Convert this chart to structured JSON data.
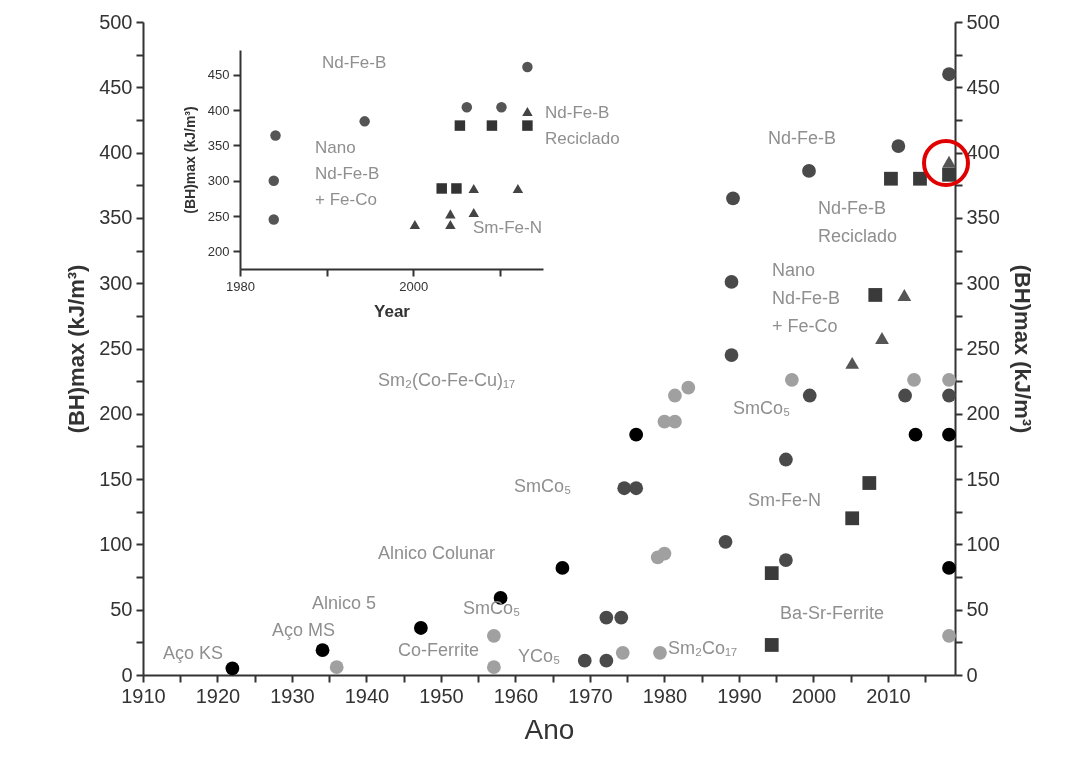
{
  "chart_data": [
    {
      "type": "scatter",
      "xlabel": "Ano",
      "ylabel": "(BH)max (kJ/m³)",
      "y2label": "(BH)max (kJ/m³)",
      "xlim": [
        1910,
        2019
      ],
      "ylim": [
        0,
        500
      ],
      "y2lim": [
        0,
        500
      ],
      "xticks": [
        1910,
        {
          "value": 1915,
          "label": null
        },
        1920,
        {
          "value": 1925,
          "label": null
        },
        1930,
        {
          "value": 1935,
          "label": null
        },
        1940,
        {
          "value": 1945,
          "label": null
        },
        1950,
        {
          "value": 1955,
          "label": null
        },
        1960,
        {
          "value": 1965,
          "label": null
        },
        1970,
        {
          "value": 1975,
          "label": null
        },
        1980,
        {
          "value": 1985,
          "label": null
        },
        1990,
        {
          "value": 1995,
          "label": null
        },
        2000,
        {
          "value": 2005,
          "label": null
        },
        2010,
        {
          "value": 2015,
          "label": null
        }
      ],
      "yticks": [
        0,
        {
          "value": 25,
          "label": null
        },
        50,
        {
          "value": 75,
          "label": null
        },
        100,
        {
          "value": 125,
          "label": null
        },
        150,
        {
          "value": 175,
          "label": null
        },
        200,
        {
          "value": 225,
          "label": null
        },
        250,
        {
          "value": 275,
          "label": null
        },
        300,
        {
          "value": 325,
          "label": null
        },
        350,
        {
          "value": 375,
          "label": null
        },
        400,
        {
          "value": 425,
          "label": null
        },
        450,
        {
          "value": 475,
          "label": null
        },
        500
      ],
      "y2ticks": [
        0,
        {
          "value": 25,
          "label": null
        },
        50,
        {
          "value": 75,
          "label": null
        },
        100,
        {
          "value": 125,
          "label": null
        },
        150,
        {
          "value": 175,
          "label": null
        },
        200,
        {
          "value": 225,
          "label": null
        },
        250,
        {
          "value": 275,
          "label": null
        },
        300,
        {
          "value": 325,
          "label": null
        },
        350,
        {
          "value": 375,
          "label": null
        },
        400,
        {
          "value": 425,
          "label": null
        },
        450,
        {
          "value": 475,
          "label": null
        },
        500
      ],
      "series": [
        {
          "color": "#000000",
          "marker": "circle",
          "x": [
            1922.0,
            1934.1,
            1947.3,
            1958.0,
            1966.3,
            1976.2,
            2013.7,
            2018.2,
            2018.2
          ],
          "values": [
            5,
            19,
            36,
            59,
            82,
            184,
            184,
            184,
            82
          ]
        },
        {
          "color": "#4a4a4a",
          "marker": "circle",
          "x": [
            1969.3,
            1972.2,
            1972.2,
            1974.2,
            1974.6,
            1976.2,
            1988.2,
            1989.0,
            1989.0,
            1989.2,
            1996.3,
            1996.3,
            1999.4,
            1999.5,
            2011.4,
            2012.3,
            2018.2,
            2018.2
          ],
          "values": [
            11,
            11,
            44,
            44,
            143,
            143,
            102,
            245,
            301,
            365,
            88,
            165,
            386,
            214,
            405,
            214,
            214,
            460
          ]
        },
        {
          "color": "#a0a0a0",
          "marker": "circle",
          "x": [
            1936.0,
            1957.1,
            1957.1,
            1974.4,
            1979.4,
            1979.1,
            1980.0,
            1980.0,
            1981.4,
            1981.4,
            1983.2,
            1997.1,
            2013.5,
            2018.2,
            2018.2
          ],
          "values": [
            6,
            6,
            30,
            17,
            17,
            90,
            93,
            194,
            194,
            214,
            220,
            226,
            226,
            226,
            30
          ]
        },
        {
          "color": "#3a3a3a",
          "marker": "square",
          "x": [
            1994.4,
            1994.4,
            2005.2,
            2007.5,
            2008.3,
            2010.4,
            2014.3,
            2018.2
          ],
          "values": [
            23,
            78,
            120,
            147,
            291,
            380,
            380,
            383
          ]
        },
        {
          "color": "#555555",
          "marker": "triangle",
          "x": [
            2005.2,
            2009.2,
            2012.2,
            2018.2
          ],
          "values": [
            239,
            258,
            291,
            393
          ]
        }
      ],
      "annotations": [
        "Aço KS",
        "Aço MS",
        "Alnico 5",
        "Co-Ferrite",
        "Alnico Colunar",
        "SmCo₅",
        "YCo₅",
        "Sm₂Co₁₇",
        "Ba-Sr-Ferrite",
        "SmCo₅",
        "Sm₂(Co-Fe-Cu)₁₇",
        "SmCo₅",
        "Sm-Fe-N",
        "Nd-Fe-B",
        "Nd-Fe-B\nReciclado",
        "Nano\nNd-Fe-B\n+ Fe-Co"
      ]
    },
    {
      "type": "scatter",
      "xlabel": "Year",
      "ylabel": "(BH)max (kJ/m³)",
      "xlim": [
        1980,
        2015
      ],
      "ylim": [
        175,
        485
      ],
      "xticks": [
        1980,
        {
          "value": 1990,
          "label": null
        },
        2000,
        {
          "value": 2010,
          "label": null
        }
      ],
      "yticks": [
        200,
        250,
        300,
        350,
        400,
        450
      ],
      "series": [
        {
          "color": "#555555",
          "marker": "circle",
          "x": [
            1983.9,
            1983.9,
            1984.1,
            1994.4,
            2006.2,
            2010.2,
            2013.2
          ],
          "values": [
            245,
            300,
            364,
            384,
            404,
            404,
            461
          ]
        },
        {
          "color": "#333333",
          "marker": "square",
          "x": [
            2003.3,
            2005.0,
            2005.4,
            2009.1,
            2013.2
          ],
          "values": [
            289,
            289,
            378,
            378,
            378
          ]
        },
        {
          "color": "#444444",
          "marker": "triangle",
          "x": [
            2000.2,
            2004.3,
            2004.3,
            2007.0,
            2007.0,
            2012.1,
            2013.2
          ],
          "values": [
            238,
            238,
            253,
            255,
            289,
            289,
            398
          ]
        }
      ],
      "annotations": [
        "Nd-Fe-B",
        "Nano\nNd-Fe-B\n+ Fe-Co",
        "Sm-Fe-N",
        "Nd-Fe-B\nReciclado"
      ]
    }
  ]
}
